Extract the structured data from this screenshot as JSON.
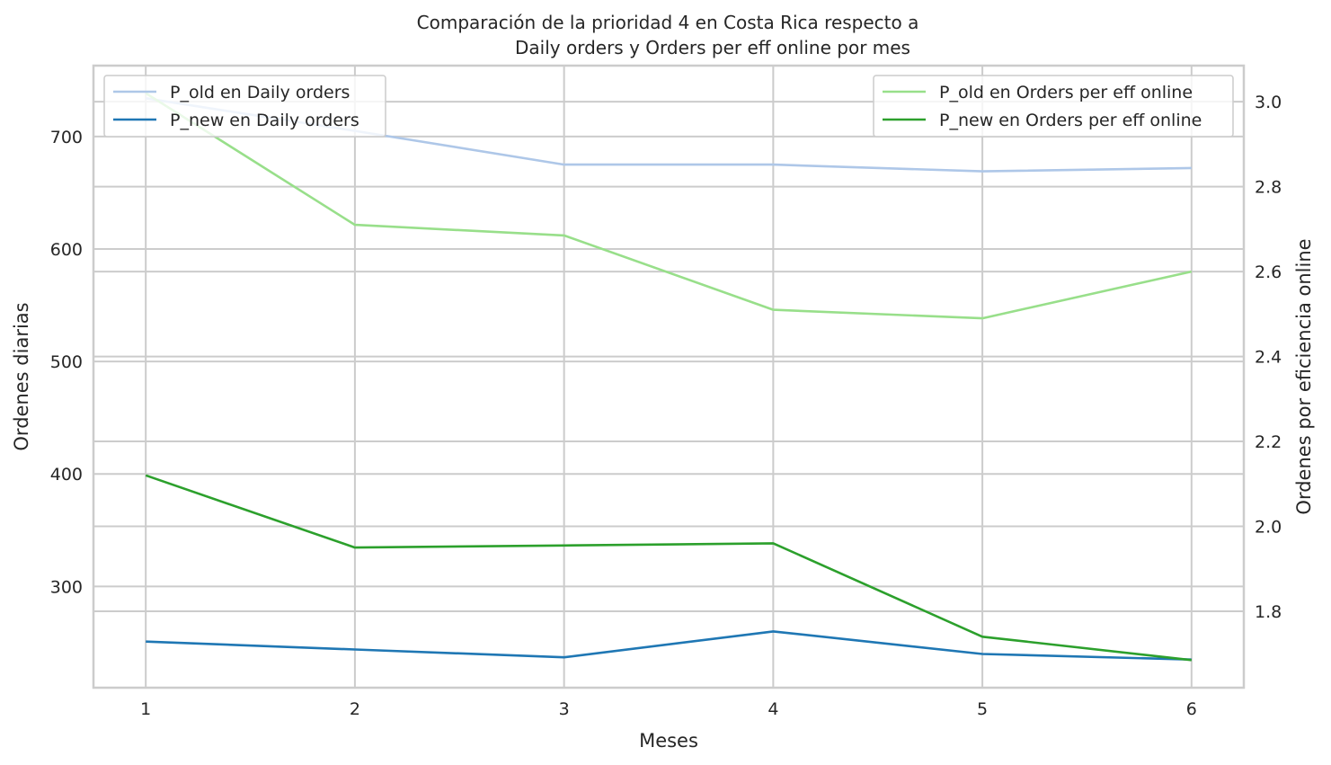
{
  "chart_data": {
    "type": "line",
    "title_line1": "Comparación de la prioridad 4 en Costa Rica respecto a",
    "title_line2": "Daily orders y Orders per eff online por mes",
    "xlabel": "Meses",
    "ylabel_left": "Ordenes diarias",
    "ylabel_right": "Ordenes por eficiencia online",
    "x": [
      1,
      2,
      3,
      4,
      5,
      6
    ],
    "x_ticks": [
      "1",
      "2",
      "3",
      "4",
      "5",
      "6"
    ],
    "xlim": [
      0.75,
      6.25
    ],
    "left_axis": {
      "ylim": [
        210,
        763
      ],
      "ticks": [
        300,
        400,
        500,
        600,
        700
      ],
      "tick_labels": [
        "300",
        "400",
        "500",
        "600",
        "700"
      ]
    },
    "right_axis": {
      "ylim": [
        1.62,
        3.085
      ],
      "ticks": [
        1.8,
        2.0,
        2.2,
        2.4,
        2.6,
        2.8,
        3.0
      ],
      "tick_labels": [
        "1.8",
        "2.0",
        "2.2",
        "2.4",
        "2.6",
        "2.8",
        "3.0"
      ]
    },
    "series": [
      {
        "name": "P_old en Daily orders",
        "axis": "left",
        "color": "#aec7e8",
        "values": [
          734,
          705,
          675,
          675,
          669,
          672
        ]
      },
      {
        "name": "P_new en Daily orders",
        "axis": "left",
        "color": "#1f77b4",
        "values": [
          251,
          244,
          237,
          260,
          240,
          235
        ]
      },
      {
        "name": "P_old en Orders per eff online",
        "axis": "right",
        "color": "#98df8a",
        "values": [
          3.02,
          2.71,
          2.685,
          2.51,
          2.49,
          2.6
        ]
      },
      {
        "name": "P_new en Orders per eff online",
        "axis": "right",
        "color": "#2ca02c",
        "values": [
          2.12,
          1.95,
          1.955,
          1.96,
          1.74,
          1.685
        ]
      }
    ],
    "legend_left_position": "top-left",
    "legend_right_position": "top-right",
    "grid": true
  }
}
